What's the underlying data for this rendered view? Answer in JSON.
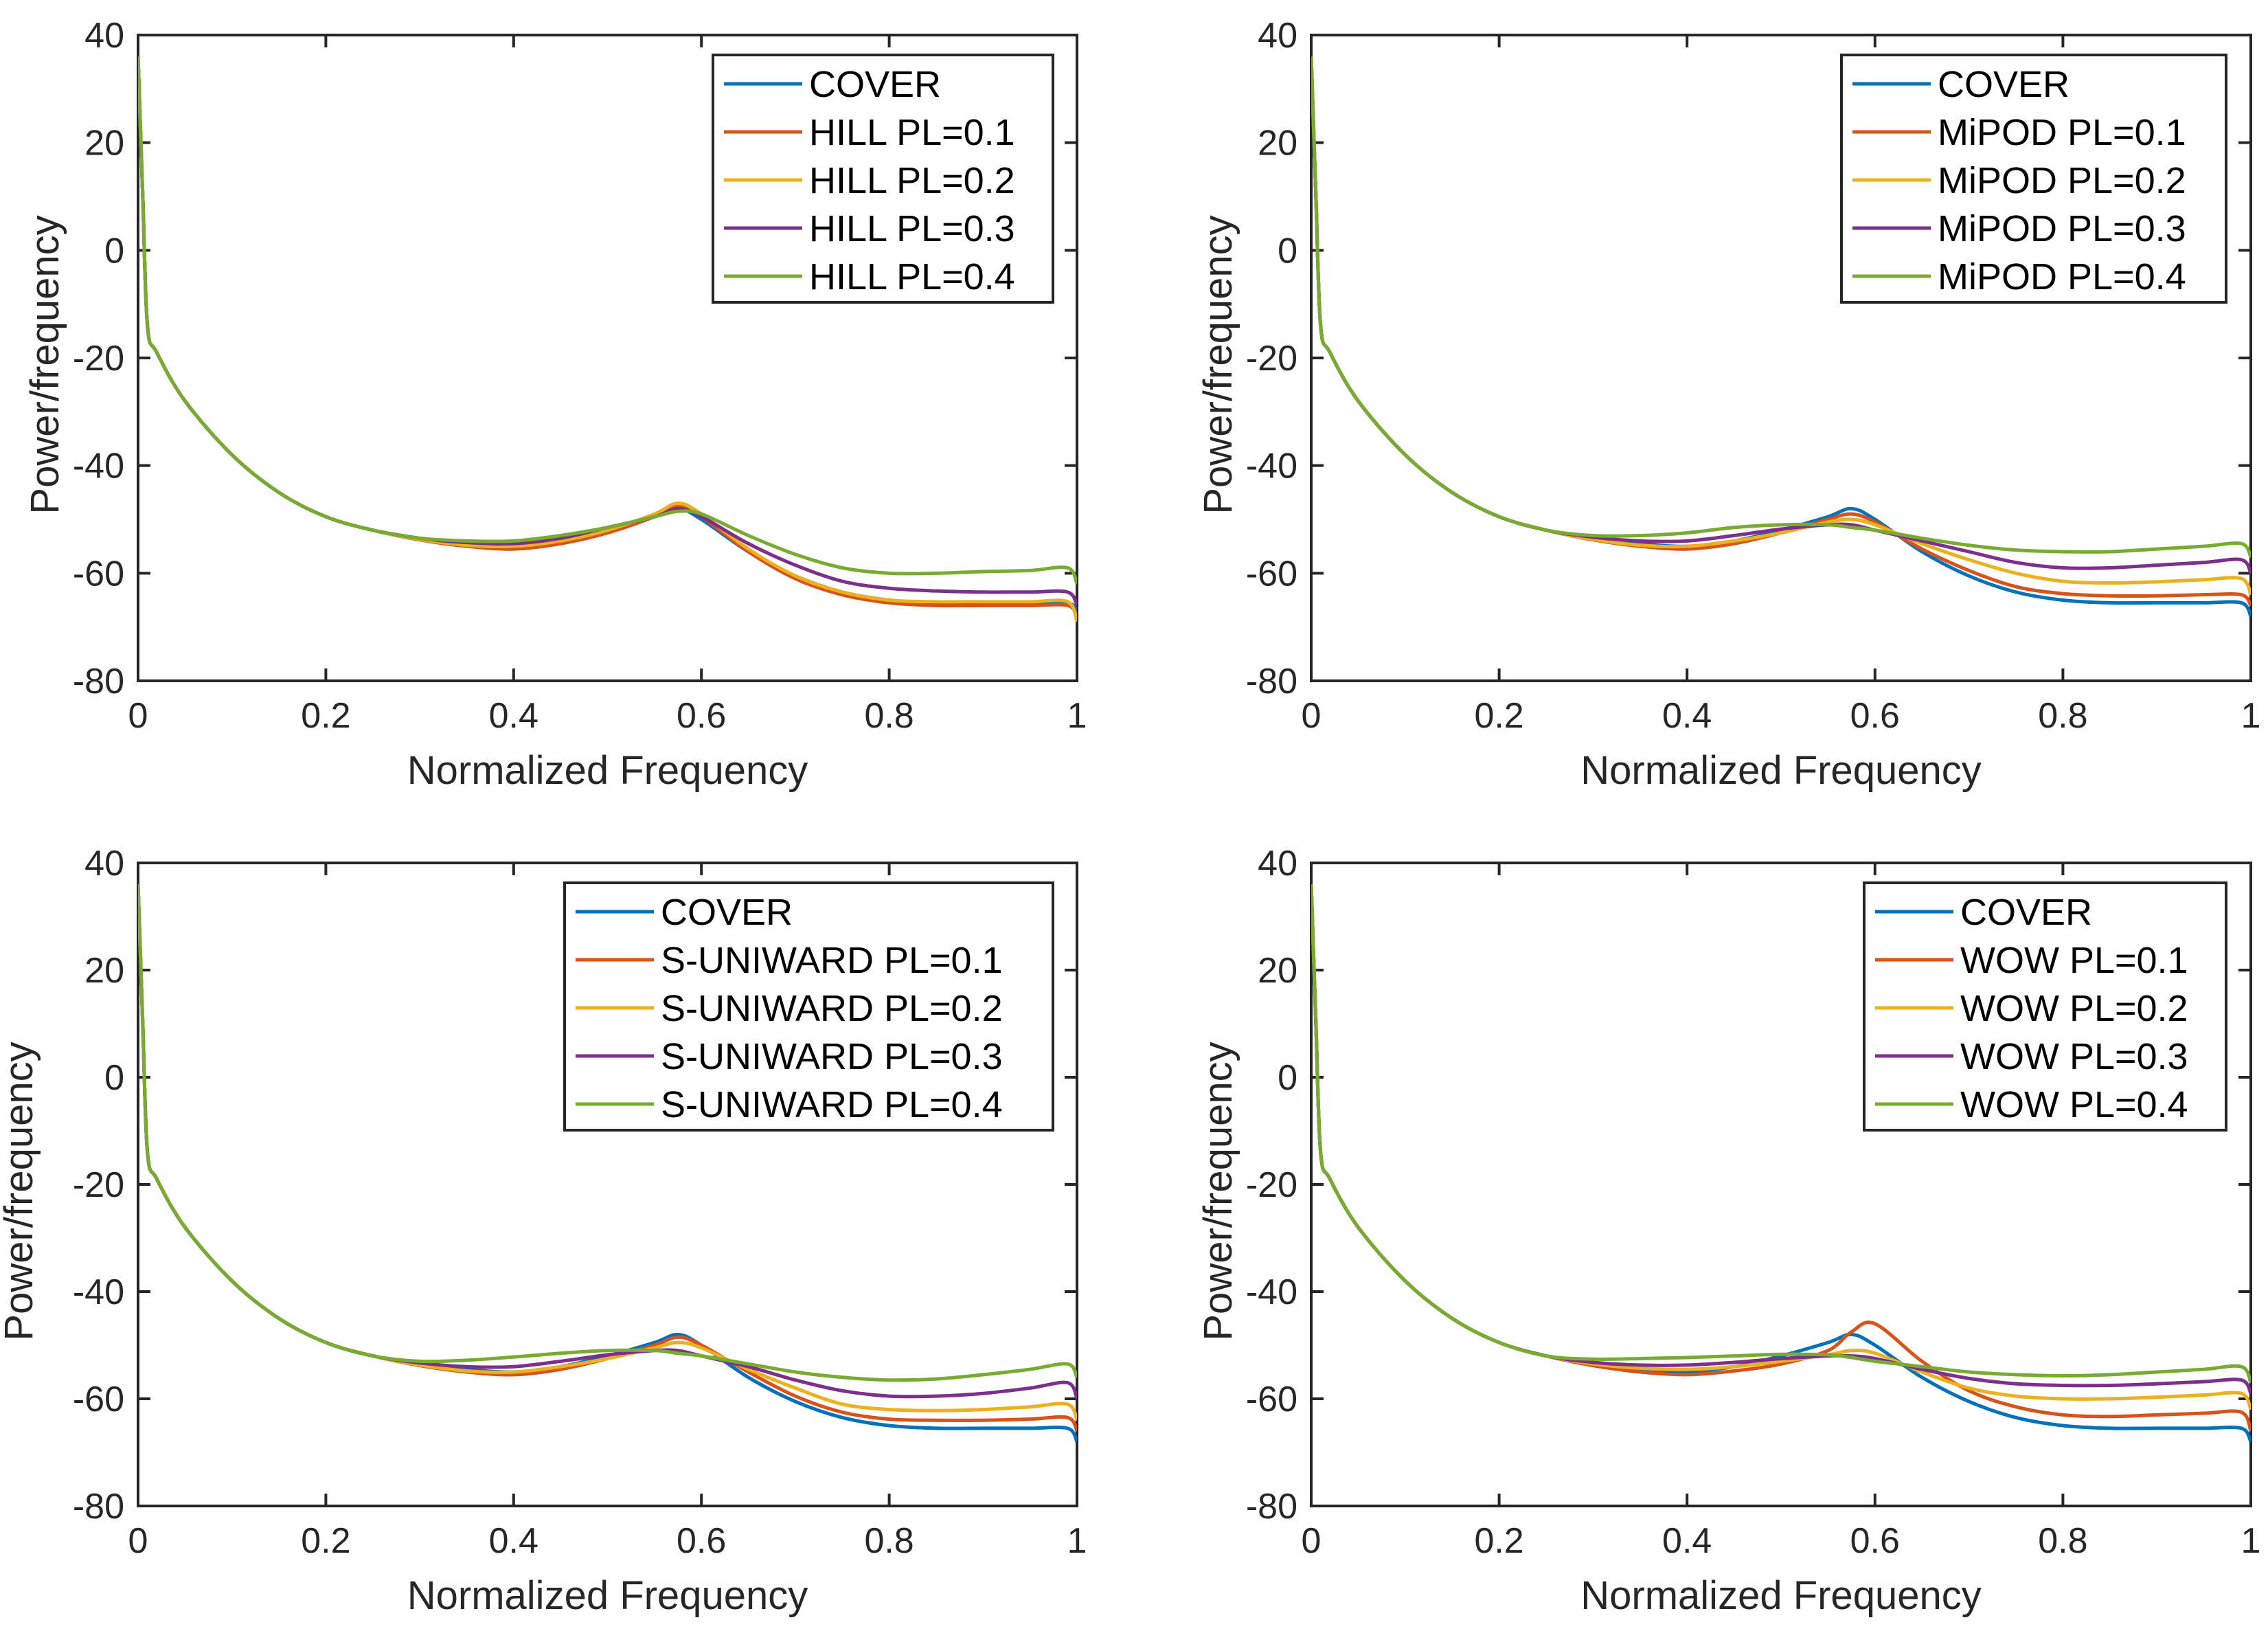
{
  "chart_data": {
    "type": "line",
    "colors": [
      "#0072BD",
      "#D95319",
      "#EDB120",
      "#7E2F8E",
      "#77AC30"
    ],
    "x": [
      0,
      0.005,
      0.01,
      0.02,
      0.05,
      0.1,
      0.15,
      0.2,
      0.25,
      0.3,
      0.35,
      0.4,
      0.45,
      0.5,
      0.55,
      0.575,
      0.6,
      0.65,
      0.7,
      0.75,
      0.8,
      0.85,
      0.9,
      0.95,
      0.99,
      1
    ],
    "xlim": [
      0,
      1
    ],
    "ylim": [
      -80,
      40
    ],
    "xticks": [
      0,
      0.2,
      0.4,
      0.6,
      0.8,
      1
    ],
    "xtick_labels": [
      "0",
      "0.2",
      "0.4",
      "0.6",
      "0.8",
      "1"
    ],
    "yticks": [
      -80,
      -60,
      -40,
      -20,
      0,
      20,
      40
    ],
    "ytick_labels": [
      "-80",
      "-60",
      "-40",
      "-20",
      "0",
      "20",
      "40"
    ],
    "grid": false,
    "legend_position": "top-right",
    "panels": [
      {
        "xlabel": "Normalized Frequency",
        "ylabel": "Power/frequency",
        "series": [
          {
            "name": "COVER",
            "values": [
              36,
              10,
              -14,
              -19,
              -28,
              -38,
              -45,
              -49.5,
              -52,
              -53.5,
              -54.5,
              -55,
              -54,
              -52,
              -49.5,
              -48,
              -50,
              -56,
              -60.5,
              -63.5,
              -65,
              -65.5,
              -65.5,
              -65.5,
              -65.5,
              -67
            ]
          },
          {
            "name": "HILL PL=0.1",
            "values": [
              36,
              10,
              -14,
              -19,
              -28,
              -38,
              -45,
              -49.5,
              -52,
              -53.8,
              -55,
              -55.5,
              -54.5,
              -52.5,
              -49.5,
              -47.5,
              -49.5,
              -56,
              -61,
              -64,
              -65.5,
              -66,
              -66,
              -66,
              -66,
              -68
            ]
          },
          {
            "name": "HILL PL=0.2",
            "values": [
              36,
              10,
              -14,
              -19,
              -28,
              -38,
              -45,
              -49.5,
              -52,
              -53.7,
              -54.8,
              -55,
              -54,
              -52,
              -49,
              -47,
              -49,
              -55.5,
              -60.5,
              -63.5,
              -65,
              -65.3,
              -65.3,
              -65.3,
              -65.3,
              -69
            ]
          },
          {
            "name": "HILL PL=0.3",
            "values": [
              36,
              10,
              -14,
              -19,
              -28,
              -38,
              -45,
              -49.5,
              -52,
              -53.5,
              -54.3,
              -54.5,
              -53.5,
              -51.5,
              -49.5,
              -48,
              -49.5,
              -54.5,
              -58.5,
              -61.5,
              -62.8,
              -63.3,
              -63.5,
              -63.5,
              -63.5,
              -66
            ]
          },
          {
            "name": "HILL PL=0.4",
            "values": [
              36,
              10,
              -14,
              -19,
              -28,
              -38,
              -45,
              -49.5,
              -52,
              -53.5,
              -54,
              -54,
              -53,
              -51.5,
              -49.5,
              -48.5,
              -49,
              -53,
              -56.5,
              -59,
              -60,
              -60,
              -59.7,
              -59.5,
              -59,
              -62
            ]
          }
        ]
      },
      {
        "xlabel": "Normalized Frequency",
        "ylabel": "Power/frequency",
        "series": [
          {
            "name": "COVER",
            "values": [
              36,
              10,
              -14,
              -19,
              -28,
              -38,
              -45,
              -49.5,
              -52,
              -53.5,
              -54.5,
              -55,
              -54,
              -52,
              -49.5,
              -48,
              -50,
              -56,
              -60.5,
              -63.5,
              -65,
              -65.5,
              -65.5,
              -65.5,
              -65.5,
              -68
            ]
          },
          {
            "name": "MiPOD PL=0.1",
            "values": [
              36,
              10,
              -14,
              -19,
              -28,
              -38,
              -45,
              -49.5,
              -52,
              -53.8,
              -55,
              -55.5,
              -54.5,
              -52.5,
              -50,
              -49,
              -50.5,
              -55.5,
              -59.5,
              -62.5,
              -63.8,
              -64.2,
              -64.2,
              -64,
              -64,
              -66
            ]
          },
          {
            "name": "MiPOD PL=0.2",
            "values": [
              36,
              10,
              -14,
              -19,
              -28,
              -38,
              -45,
              -49.5,
              -52,
              -53.7,
              -54.8,
              -55,
              -54,
              -52.5,
              -50.5,
              -50,
              -51,
              -54.5,
              -57.5,
              -60,
              -61.5,
              -61.8,
              -61.6,
              -61.2,
              -61,
              -64
            ]
          },
          {
            "name": "MiPOD PL=0.3",
            "values": [
              36,
              10,
              -14,
              -19,
              -28,
              -38,
              -45,
              -49.5,
              -52,
              -53.3,
              -54,
              -54,
              -53,
              -51.8,
              -51,
              -51,
              -52,
              -54,
              -56,
              -58,
              -59,
              -59,
              -58.5,
              -58,
              -57.5,
              -60
            ]
          },
          {
            "name": "MiPOD PL=0.4",
            "values": [
              36,
              10,
              -14,
              -19,
              -28,
              -38,
              -45,
              -49.5,
              -52,
              -53,
              -53,
              -52.5,
              -51.5,
              -51,
              -51,
              -51.5,
              -52,
              -53.5,
              -54.8,
              -55.7,
              -56,
              -56,
              -55.5,
              -55,
              -54.5,
              -57
            ]
          }
        ]
      },
      {
        "xlabel": "Normalized Frequency",
        "ylabel": "Power/frequency",
        "series": [
          {
            "name": "COVER",
            "values": [
              36,
              10,
              -14,
              -19,
              -28,
              -38,
              -45,
              -49.5,
              -52,
              -53.5,
              -54.5,
              -55,
              -54,
              -52,
              -49.5,
              -48,
              -50,
              -56,
              -60.5,
              -63.5,
              -65,
              -65.5,
              -65.5,
              -65.5,
              -65.5,
              -68
            ]
          },
          {
            "name": "S-UNIWARD PL=0.1",
            "values": [
              36,
              10,
              -14,
              -19,
              -28,
              -38,
              -45,
              -49.5,
              -52,
              -53.8,
              -55,
              -55.5,
              -54.5,
              -52.5,
              -50,
              -48.5,
              -50,
              -55,
              -59.5,
              -62.5,
              -63.8,
              -64,
              -64,
              -63.8,
              -63.5,
              -66
            ]
          },
          {
            "name": "S-UNIWARD PL=0.2",
            "values": [
              36,
              10,
              -14,
              -19,
              -28,
              -38,
              -45,
              -49.5,
              -52,
              -53.7,
              -54.8,
              -55,
              -54,
              -52.5,
              -50.5,
              -49.5,
              -50.5,
              -54.5,
              -58,
              -61,
              -62,
              -62.2,
              -62,
              -61.5,
              -61,
              -64
            ]
          },
          {
            "name": "S-UNIWARD PL=0.3",
            "values": [
              36,
              10,
              -14,
              -19,
              -28,
              -38,
              -45,
              -49.5,
              -52,
              -53.3,
              -54,
              -54,
              -53,
              -51.8,
              -51,
              -51,
              -52,
              -54,
              -56.5,
              -58.5,
              -59.5,
              -59.5,
              -59,
              -58,
              -57,
              -60
            ]
          },
          {
            "name": "S-UNIWARD PL=0.4",
            "values": [
              36,
              10,
              -14,
              -19,
              -28,
              -38,
              -45,
              -49.5,
              -52,
              -53,
              -52.8,
              -52.2,
              -51.5,
              -51,
              -51,
              -51.5,
              -52,
              -53.5,
              -55,
              -56,
              -56.5,
              -56.3,
              -55.5,
              -54.5,
              -53.5,
              -56
            ]
          }
        ]
      },
      {
        "xlabel": "Normalized Frequency",
        "ylabel": "Power/frequency",
        "series": [
          {
            "name": "COVER",
            "values": [
              36,
              10,
              -14,
              -19,
              -28,
              -38,
              -45,
              -49.5,
              -52,
              -53.5,
              -54.5,
              -55,
              -54,
              -52,
              -49.5,
              -48,
              -50,
              -56,
              -60.5,
              -63.5,
              -65,
              -65.5,
              -65.5,
              -65.5,
              -65.5,
              -68
            ]
          },
          {
            "name": "WOW PL=0.1",
            "values": [
              36,
              10,
              -14,
              -19,
              -28,
              -38,
              -45,
              -49.5,
              -52,
              -53.8,
              -55,
              -55.5,
              -54.8,
              -53.5,
              -51,
              -47.5,
              -46,
              -53,
              -58.5,
              -61.5,
              -63,
              -63.3,
              -63,
              -62.7,
              -62.5,
              -66
            ]
          },
          {
            "name": "WOW PL=0.2",
            "values": [
              36,
              10,
              -14,
              -19,
              -28,
              -38,
              -45,
              -49.5,
              -52,
              -53.5,
              -54.3,
              -54.5,
              -54,
              -53,
              -51.8,
              -51,
              -51.5,
              -55,
              -58,
              -59.5,
              -60,
              -60,
              -59.7,
              -59.3,
              -59,
              -62
            ]
          },
          {
            "name": "WOW PL=0.3",
            "values": [
              36,
              10,
              -14,
              -19,
              -28,
              -38,
              -45,
              -49.5,
              -52,
              -53.2,
              -53.7,
              -53.7,
              -53.2,
              -52.5,
              -52,
              -52,
              -52.5,
              -54.5,
              -56.2,
              -57.2,
              -57.5,
              -57.5,
              -57.2,
              -56.8,
              -56.5,
              -59
            ]
          },
          {
            "name": "WOW PL=0.4",
            "values": [
              36,
              10,
              -14,
              -19,
              -28,
              -38,
              -45,
              -49.5,
              -52,
              -52.6,
              -52.5,
              -52.3,
              -52,
              -51.7,
              -51.8,
              -52.3,
              -53,
              -54,
              -55,
              -55.5,
              -55.7,
              -55.5,
              -55,
              -54.5,
              -54,
              -57
            ]
          }
        ]
      }
    ]
  }
}
